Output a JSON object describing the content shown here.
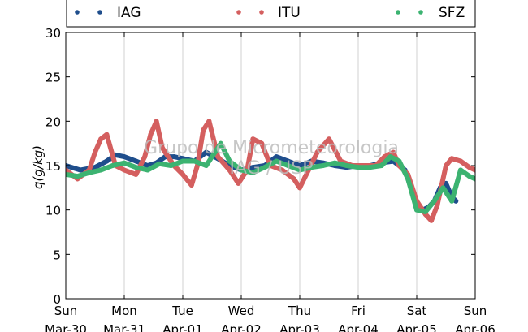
{
  "chart_data": {
    "type": "scatter",
    "title": "",
    "xlabel": "",
    "ylabel": "q(g/kg)",
    "ylim": [
      0,
      30
    ],
    "xlim": [
      0,
      7
    ],
    "yticks": [
      0,
      5,
      10,
      15,
      20,
      25,
      30
    ],
    "xtick_day_labels": [
      "Sun",
      "Mon",
      "Tue",
      "Wed",
      "Thu",
      "Fri",
      "Sat",
      "Sun"
    ],
    "xtick_date_labels": [
      "Mar-30",
      "Mar-31",
      "Apr-01",
      "Apr-02",
      "Apr-03",
      "Apr-04",
      "Apr-05",
      "Apr-06"
    ],
    "grid": "vertical",
    "legend_position": "top",
    "watermark": [
      "Grupo de Micrometeorologia",
      "IAG / USP"
    ],
    "series": [
      {
        "name": "IAG",
        "color": "#1f4e8c",
        "x": [
          0,
          0.25,
          0.5,
          0.7,
          0.85,
          1.0,
          1.2,
          1.4,
          1.55,
          1.7,
          1.85,
          2.0,
          2.2,
          2.4,
          2.6,
          2.8,
          3.0,
          3.2,
          3.4,
          3.6,
          3.8,
          4.0,
          4.2,
          4.4,
          4.6,
          4.8,
          5.0,
          5.2,
          5.4,
          5.6,
          5.8,
          5.9,
          6.0,
          6.1,
          6.2,
          6.3,
          6.4,
          6.5,
          6.6,
          6.67
        ],
        "y": [
          15.0,
          14.5,
          14.8,
          15.5,
          16.2,
          16.0,
          15.5,
          15.0,
          15.3,
          16.0,
          16.0,
          15.8,
          15.5,
          16.5,
          15.8,
          15.0,
          14.5,
          14.8,
          15.0,
          16.0,
          15.5,
          15.0,
          15.5,
          15.3,
          15.0,
          14.8,
          15.0,
          15.0,
          15.3,
          15.5,
          14.5,
          12.5,
          10.5,
          10.0,
          10.3,
          11.0,
          12.5,
          13.0,
          11.5,
          11.0
        ]
      },
      {
        "name": "ITU",
        "color": "#d45f5f",
        "x": [
          0,
          0.2,
          0.4,
          0.5,
          0.6,
          0.7,
          0.85,
          1.0,
          1.2,
          1.35,
          1.45,
          1.55,
          1.65,
          1.85,
          2.0,
          2.15,
          2.25,
          2.35,
          2.45,
          2.6,
          2.8,
          2.95,
          3.1,
          3.2,
          3.35,
          3.5,
          3.7,
          3.9,
          4.0,
          4.15,
          4.3,
          4.5,
          4.7,
          4.9,
          5.1,
          5.3,
          5.45,
          5.6,
          5.7,
          5.85,
          6.0,
          6.15,
          6.25,
          6.35,
          6.5,
          6.6,
          6.75,
          6.9,
          7.0
        ],
        "y": [
          14.5,
          13.5,
          14.5,
          16.5,
          18.0,
          18.5,
          15.0,
          14.5,
          14.0,
          16.0,
          18.5,
          20.0,
          17.0,
          15.0,
          14.0,
          12.8,
          15.0,
          19.0,
          20.0,
          16.0,
          14.5,
          13.0,
          14.5,
          18.0,
          17.5,
          15.0,
          14.5,
          13.5,
          12.5,
          14.5,
          16.5,
          18.0,
          15.5,
          15.0,
          15.0,
          15.0,
          16.0,
          16.5,
          15.0,
          14.0,
          11.0,
          9.5,
          8.8,
          10.5,
          15.0,
          15.8,
          15.5,
          14.8,
          14.5
        ]
      },
      {
        "name": "SFZ",
        "color": "#3cb371",
        "x": [
          0,
          0.2,
          0.4,
          0.6,
          0.8,
          1.0,
          1.2,
          1.4,
          1.6,
          1.8,
          2.0,
          2.2,
          2.4,
          2.55,
          2.65,
          2.8,
          3.0,
          3.2,
          3.4,
          3.6,
          3.8,
          4.0,
          4.2,
          4.4,
          4.6,
          4.8,
          5.0,
          5.2,
          5.4,
          5.55,
          5.7,
          5.85,
          6.0,
          6.15,
          6.3,
          6.45,
          6.6,
          6.75,
          6.9,
          7.0
        ],
        "y": [
          14.0,
          13.8,
          14.2,
          14.5,
          15.0,
          15.3,
          14.8,
          14.5,
          15.2,
          15.0,
          15.5,
          15.5,
          15.0,
          16.5,
          17.5,
          15.5,
          14.5,
          14.2,
          14.8,
          15.5,
          15.0,
          14.5,
          14.8,
          15.0,
          15.3,
          15.0,
          14.8,
          14.8,
          15.0,
          16.0,
          15.5,
          13.5,
          10.0,
          9.8,
          11.0,
          12.5,
          11.0,
          14.5,
          13.8,
          13.5
        ]
      }
    ]
  }
}
